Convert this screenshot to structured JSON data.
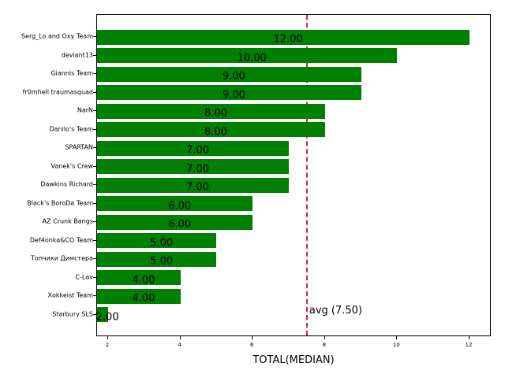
{
  "chart_data": {
    "type": "bar",
    "orientation": "horizontal",
    "title": "",
    "xlabel": "TOTAL(MEDIAN)",
    "ylabel": "",
    "xlim": [
      1.7,
      12.6
    ],
    "xticks": [
      2,
      4,
      6,
      8,
      10,
      12
    ],
    "grid": false,
    "bar_color": "#008000",
    "categories": [
      "Serg_Lo and Oxy Team",
      "deviant13",
      "Giannis Team",
      "fr0mhell traumasquad",
      "NarN",
      "Danilo's Team",
      "SPARTAN",
      "Vanek's Crew",
      "Dawkins Richard",
      "Black's BoroDa Team",
      "AZ Crunk Bangs",
      "Def4onka&CO Team",
      "Топчики Димстера",
      "C-Lav",
      "Xokkeist Team",
      "Starbury SLS"
    ],
    "values": [
      12,
      10,
      9,
      9,
      8,
      8,
      7,
      7,
      7,
      6,
      6,
      5,
      5,
      4,
      4,
      2
    ],
    "value_labels": [
      "12.00",
      "10.00",
      "9.00",
      "9.00",
      "8.00",
      "8.00",
      "7.00",
      "7.00",
      "7.00",
      "6.00",
      "6.00",
      "5.00",
      "5.00",
      "4.00",
      "4.00",
      "2.00"
    ],
    "reference_line": {
      "label": "avg (7.50)",
      "value": 7.5,
      "color": "#d62728",
      "style": "dashed"
    }
  }
}
